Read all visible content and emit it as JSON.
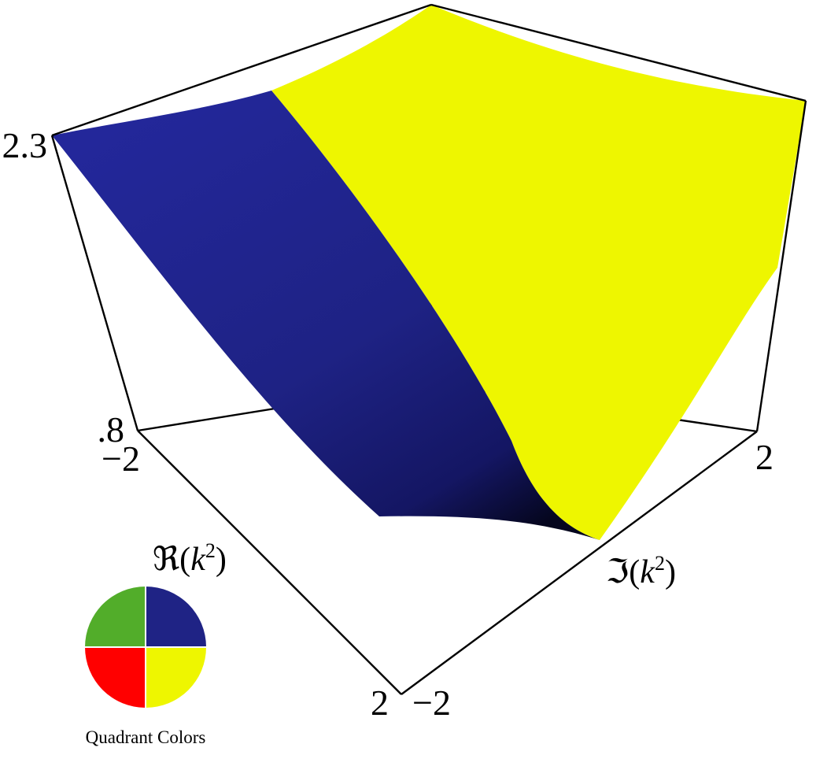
{
  "chart_data": {
    "type": "surface3d",
    "title": "",
    "axes": {
      "x": {
        "label_prefix": "ℜ(",
        "label_var": "k",
        "label_exp": "2",
        "label_suffix": ")",
        "range": [
          -2,
          2
        ],
        "tick_min": "−2",
        "tick_max": "2"
      },
      "y": {
        "label_prefix": "ℑ(",
        "label_var": "k",
        "label_exp": "2",
        "label_suffix": ")",
        "range": [
          -2,
          2
        ],
        "tick_min": "−2",
        "tick_max": "2"
      },
      "z": {
        "range": [
          0.8,
          2.3
        ],
        "tick_min": ".8",
        "tick_max": "2.3"
      }
    },
    "surface_regions": [
      {
        "quadrant": "Re>0, Im>0",
        "color": "#1f2385"
      },
      {
        "quadrant": "Re>0, Im<0",
        "color": "#eef600"
      }
    ],
    "legend": {
      "caption": "Quadrant Colors",
      "placement": "bottom-left",
      "quadrants": [
        {
          "position": "top-left",
          "color": "#52ad2a"
        },
        {
          "position": "top-right",
          "color": "#1f2385"
        },
        {
          "position": "bottom-left",
          "color": "#ff0000"
        },
        {
          "position": "bottom-right",
          "color": "#eef600"
        }
      ]
    },
    "box": true,
    "grid": false
  }
}
